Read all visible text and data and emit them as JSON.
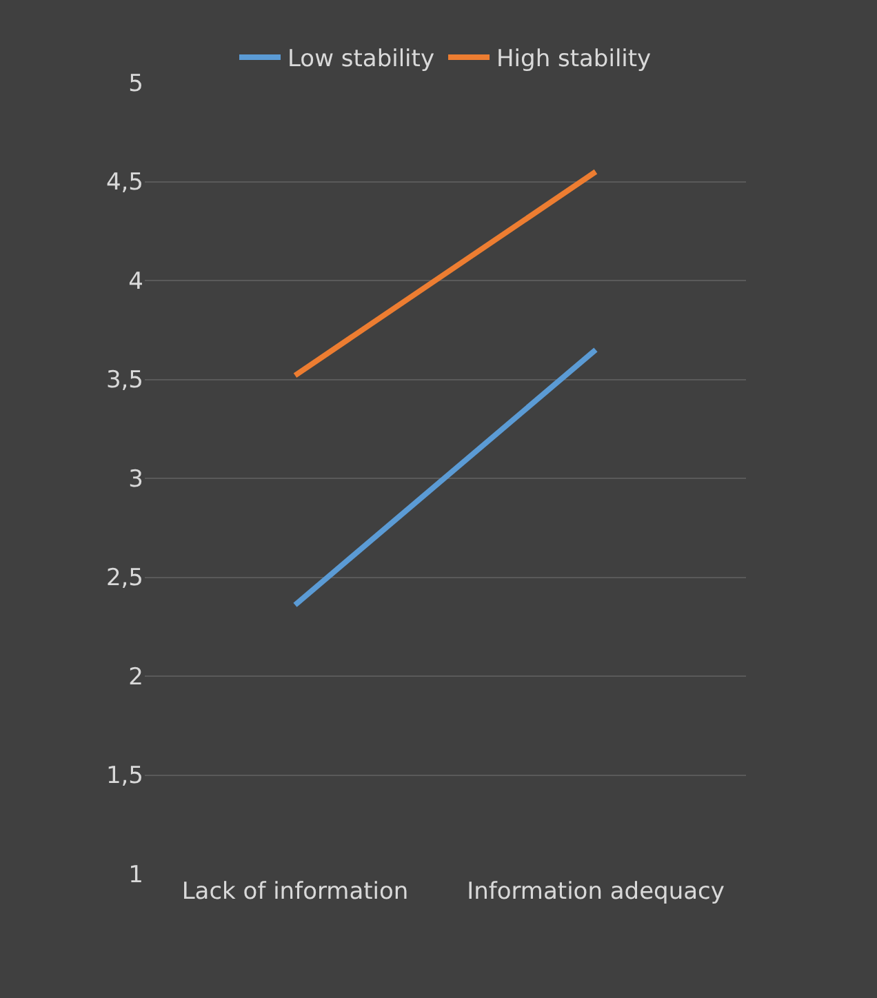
{
  "chart_data": {
    "type": "line",
    "categories": [
      "Lack of information",
      "Information adequacy"
    ],
    "series": [
      {
        "name": "Low stability",
        "color": "#5b9bd5",
        "values": [
          2.36,
          3.65
        ]
      },
      {
        "name": "High stability",
        "color": "#ed7d31",
        "values": [
          3.52,
          4.55
        ]
      }
    ],
    "ylim": [
      1,
      5
    ],
    "yticks": [
      1,
      {
        "value": 1.5,
        "label": "1,5"
      },
      2,
      {
        "value": 2.5,
        "label": "2,5"
      },
      3,
      {
        "value": 3.5,
        "label": "3,5"
      },
      4,
      {
        "value": 4.5,
        "label": "4,5"
      },
      5
    ],
    "grid": "y",
    "legend": "top",
    "marker": "none",
    "line_style": "solid"
  }
}
